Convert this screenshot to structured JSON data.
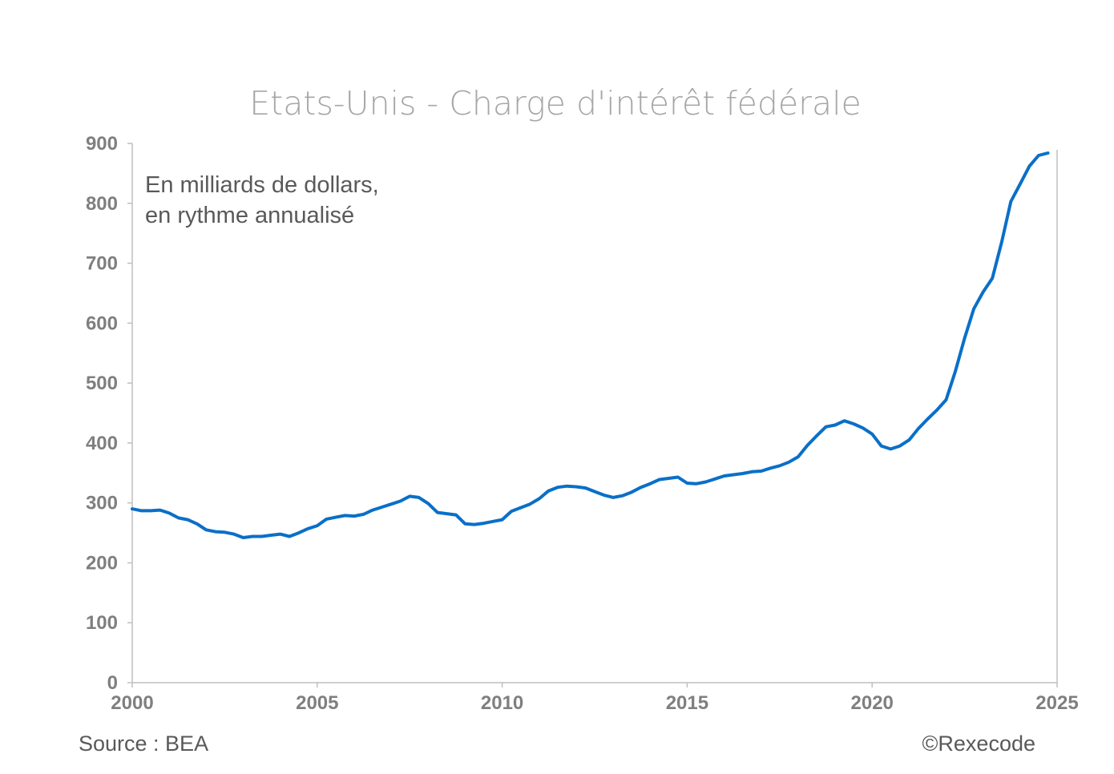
{
  "colors": {
    "line": "#0a6fc8",
    "axis": "#bfbfbf",
    "text_gray": "#7f7f7f",
    "title_gray": "#a6a6a6",
    "annotation_gray": "#595959"
  },
  "chart_data": {
    "type": "line",
    "title": "Etats-Unis - Charge d'intérêt fédérale",
    "annotation": [
      "En milliards de dollars,",
      "en rythme annualisé"
    ],
    "xlabel": "",
    "ylabel": "",
    "xlim": [
      2000,
      2025
    ],
    "ylim": [
      0,
      900
    ],
    "x_ticks": [
      2000,
      2005,
      2010,
      2015,
      2020,
      2025
    ],
    "y_ticks": [
      0,
      100,
      200,
      300,
      400,
      500,
      600,
      700,
      800,
      900
    ],
    "grid": false,
    "legend": "none",
    "series": [
      {
        "color": "#0a6fc8",
        "x": [
          2000.0,
          2000.25,
          2000.5,
          2000.75,
          2001.0,
          2001.25,
          2001.5,
          2001.75,
          2002.0,
          2002.25,
          2002.5,
          2002.75,
          2003.0,
          2003.25,
          2003.5,
          2003.75,
          2004.0,
          2004.25,
          2004.5,
          2004.75,
          2005.0,
          2005.25,
          2005.5,
          2005.75,
          2006.0,
          2006.25,
          2006.5,
          2006.75,
          2007.0,
          2007.25,
          2007.5,
          2007.75,
          2008.0,
          2008.25,
          2008.5,
          2008.75,
          2009.0,
          2009.25,
          2009.5,
          2009.75,
          2010.0,
          2010.25,
          2010.5,
          2010.75,
          2011.0,
          2011.25,
          2011.5,
          2011.75,
          2012.0,
          2012.25,
          2012.5,
          2012.75,
          2013.0,
          2013.25,
          2013.5,
          2013.75,
          2014.0,
          2014.25,
          2014.5,
          2014.75,
          2015.0,
          2015.25,
          2015.5,
          2015.75,
          2016.0,
          2016.25,
          2016.5,
          2016.75,
          2017.0,
          2017.25,
          2017.5,
          2017.75,
          2018.0,
          2018.25,
          2018.5,
          2018.75,
          2019.0,
          2019.25,
          2019.5,
          2019.75,
          2020.0,
          2020.25,
          2020.5,
          2020.75,
          2021.0,
          2021.25,
          2021.5,
          2021.75,
          2022.0,
          2022.25,
          2022.5,
          2022.75,
          2023.0,
          2023.25,
          2023.5,
          2023.75,
          2024.0,
          2024.25,
          2024.5,
          2024.75
        ],
        "values": [
          290,
          287,
          287,
          288,
          283,
          275,
          272,
          265,
          255,
          252,
          251,
          248,
          242,
          244,
          244,
          246,
          248,
          244,
          250,
          257,
          262,
          273,
          276,
          279,
          278,
          281,
          288,
          293,
          298,
          303,
          311,
          309,
          299,
          284,
          282,
          280,
          265,
          264,
          266,
          269,
          272,
          286,
          292,
          298,
          307,
          320,
          326,
          328,
          327,
          325,
          319,
          313,
          309,
          312,
          318,
          326,
          332,
          339,
          341,
          343,
          333,
          332,
          335,
          340,
          345,
          347,
          349,
          352,
          353,
          358,
          362,
          368,
          377,
          396,
          412,
          427,
          430,
          437,
          432,
          425,
          415,
          395,
          390,
          395,
          405,
          424,
          440,
          455,
          472,
          520,
          575,
          624,
          652,
          675,
          735,
          803,
          832,
          862,
          880,
          884
        ]
      }
    ],
    "source": "Source : BEA",
    "credit": "©Rexecode"
  }
}
